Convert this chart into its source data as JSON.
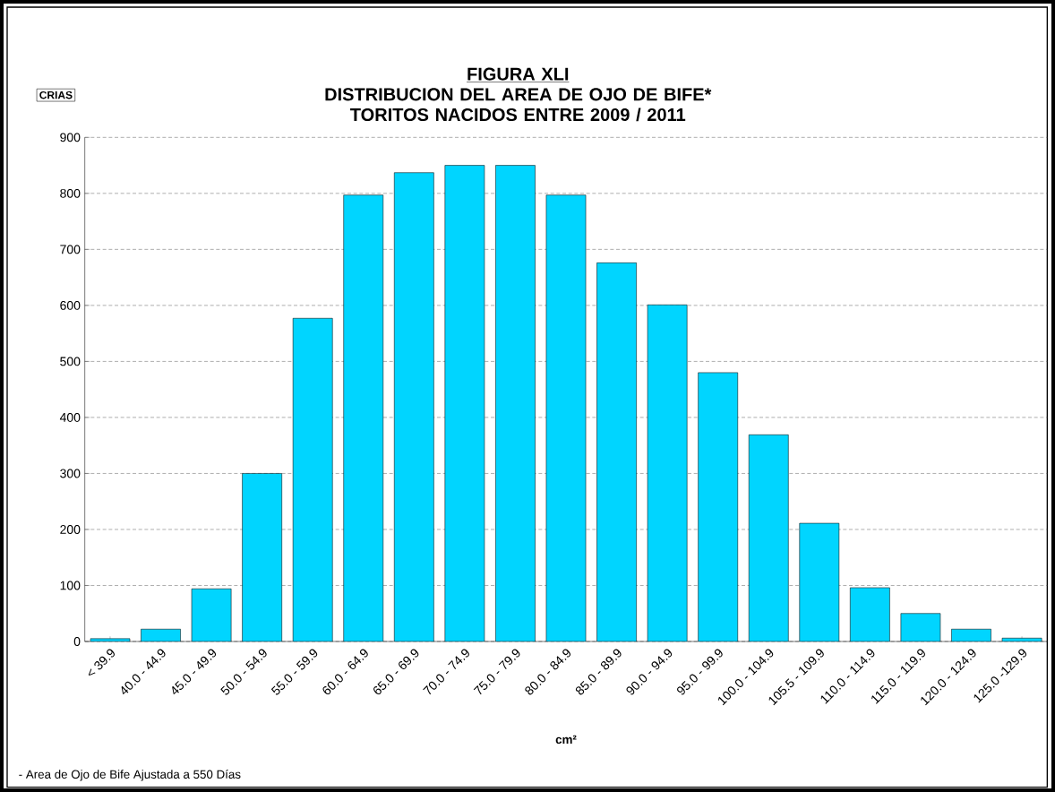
{
  "chart_data": {
    "type": "bar",
    "title": "FIGURA XLI",
    "subtitle": "DISTRIBUCION DEL AREA DE OJO DE BIFE* TORITOS NACIDOS ENTRE 2009 / 2011",
    "xlabel": "cm²",
    "ylabel": "CRIAS",
    "annotations": [
      "- Area de Ojo de Bife Ajustada a 550 Días"
    ],
    "categories": [
      "< 39.9",
      "40.0 - 44.9",
      "45.0 - 49.9",
      "50.0 - 54.9",
      "55.0 - 59.9",
      "60.0 - 64.9",
      "65.0 - 69.9",
      "70.0 - 74.9",
      "75.0 - 79.9",
      "80.0 - 84.9",
      "85.0 - 89.9",
      "90.0 - 94.9",
      "95.0 - 99.9",
      "100.0 - 104.9",
      "105.5 - 109.9",
      "110.0 - 114.9",
      "115.0 - 119.9",
      "120.0 - 124.9",
      "125.0 -129.9"
    ],
    "values": [
      5,
      22,
      94,
      300,
      577,
      797,
      837,
      850,
      850,
      797,
      676,
      601,
      480,
      369,
      211,
      96,
      50,
      22,
      6
    ],
    "color": "#00d5ff",
    "ylim": [
      0,
      900
    ],
    "yticks": [
      0,
      100,
      200,
      300,
      400,
      500,
      600,
      700,
      800,
      900
    ],
    "grid": "y"
  }
}
